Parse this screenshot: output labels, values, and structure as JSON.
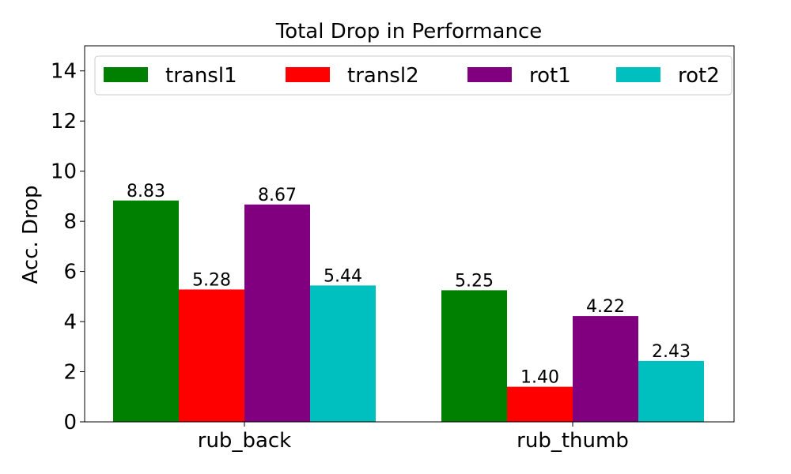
{
  "chart_data": {
    "type": "bar",
    "title": "Total Drop in Performance",
    "xlabel": "",
    "ylabel": "Acc. Drop",
    "categories": [
      "rub_back",
      "rub_thumb"
    ],
    "series": [
      {
        "name": "transl1",
        "color": "#008000",
        "values": [
          8.83,
          5.25
        ],
        "labels": [
          "8.83",
          "5.25"
        ]
      },
      {
        "name": "transl2",
        "color": "#ff0000",
        "values": [
          5.28,
          1.4
        ],
        "labels": [
          "5.28",
          "1.40"
        ]
      },
      {
        "name": "rot1",
        "color": "#800080",
        "values": [
          8.67,
          4.22
        ],
        "labels": [
          "8.67",
          "4.22"
        ]
      },
      {
        "name": "rot2",
        "color": "#00bfbf",
        "values": [
          5.44,
          2.43
        ],
        "labels": [
          "5.44",
          "2.43"
        ]
      }
    ],
    "ylim": [
      0,
      15
    ],
    "yticks": [
      0,
      2,
      4,
      6,
      8,
      10,
      12,
      14
    ],
    "grid": false,
    "legend_position": "top"
  }
}
